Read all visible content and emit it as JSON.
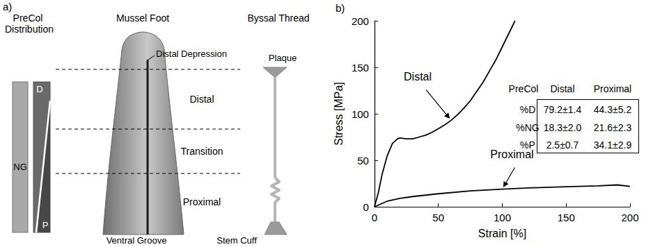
{
  "diagram": {
    "panel_label": "a)",
    "precol_distribution": {
      "title": "PreCol Distribution",
      "bars": [
        "NG",
        "D",
        "P"
      ]
    },
    "mussel_foot": {
      "title": "Mussel Foot",
      "labels": [
        "Distal Depression",
        "Ventral Groove"
      ],
      "regions": [
        "Distal",
        "Transition",
        "Proximal"
      ]
    },
    "byssal_thread": {
      "title": "Byssal Thread",
      "labels": [
        "Plaque",
        "Stem Cuff"
      ]
    }
  },
  "chart_data": {
    "panel_label": "b)",
    "type": "line",
    "x_label": "Strain [%]",
    "y_label": "Stress [MPa]",
    "xlim": [
      0,
      200
    ],
    "xticks": [
      0,
      50,
      100,
      150,
      200
    ],
    "ylim": [
      0,
      200
    ],
    "yticks": [
      0,
      50,
      100,
      150,
      200
    ],
    "grid": false,
    "series": [
      {
        "name": "Distal",
        "color": "#000000",
        "x": [
          0,
          3,
          6,
          10,
          14,
          18,
          20,
          25,
          30,
          35,
          40,
          45,
          50,
          55,
          60,
          65,
          70,
          75,
          80,
          85,
          90,
          95,
          100,
          105,
          110
        ],
        "values": [
          0,
          15,
          35,
          55,
          68,
          73,
          74,
          73,
          73,
          75,
          77,
          80,
          84,
          88,
          93,
          99,
          106,
          114,
          124,
          134,
          146,
          158,
          172,
          186,
          200
        ]
      },
      {
        "name": "Proximal",
        "color": "#000000",
        "x": [
          0,
          5,
          10,
          20,
          30,
          40,
          50,
          75,
          100,
          125,
          150,
          175,
          190,
          200
        ],
        "values": [
          0,
          3,
          6,
          9,
          11,
          12.5,
          14,
          17,
          19,
          20.5,
          21.5,
          22.5,
          23.5,
          22
        ]
      }
    ],
    "table": {
      "header": [
        "PreCol",
        "Distal",
        "Proximal"
      ],
      "rows": [
        [
          "%D",
          "79.2±1.4",
          "44.3±5.2"
        ],
        [
          "%NG",
          "18.3±2.0",
          "21.6±2.3"
        ],
        [
          "%P",
          "2.5±0.7",
          "34.1±2.9"
        ]
      ]
    }
  }
}
